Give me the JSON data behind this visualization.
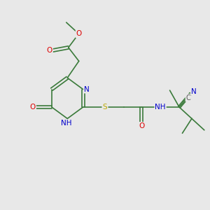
{
  "bg_color": "#e8e8e8",
  "bond_color": "#3a7a3a",
  "atom_colors": {
    "O": "#dd0000",
    "N": "#0000cc",
    "S": "#bbaa00",
    "C": "#555555",
    "H": "#888888"
  },
  "bond_width": 1.2,
  "font_size_atom": 7.5
}
